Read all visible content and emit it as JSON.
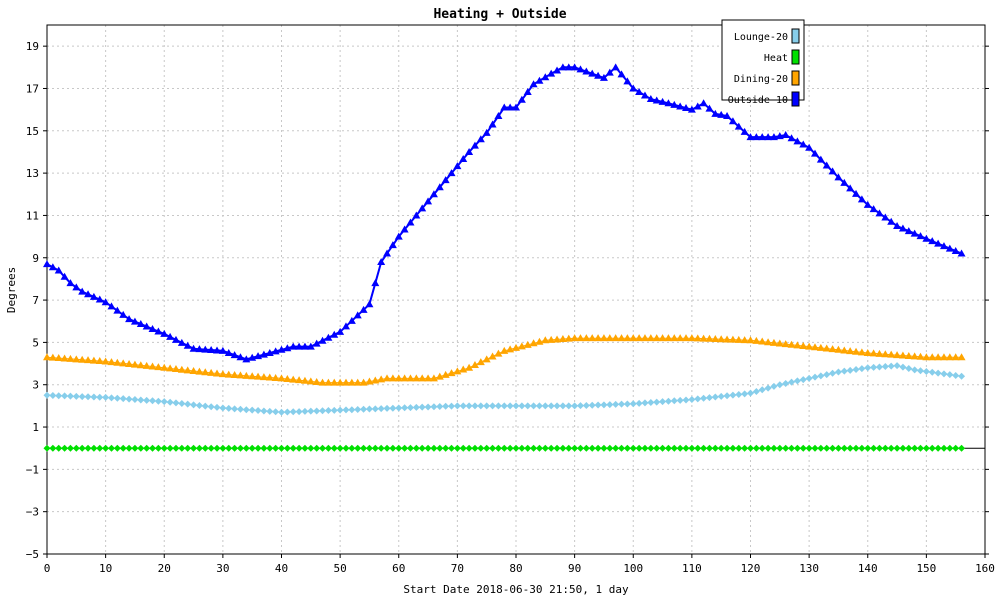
{
  "colors": {
    "background": "#ffffff",
    "frame": "#000000",
    "grid": "#c8c8c8",
    "lounge": "#87ceeb",
    "heat": "#00e000",
    "dining": "#ffa500",
    "outside": "#0000ff"
  },
  "chart_data": {
    "type": "line",
    "title": "Heating + Outside",
    "xlabel": "Start Date 2018-06-30 21:50, 1 day",
    "ylabel": "Degrees",
    "xlim": [
      0,
      160
    ],
    "ylim": [
      -5,
      20
    ],
    "xticks": [
      0,
      10,
      20,
      30,
      40,
      50,
      60,
      70,
      80,
      90,
      100,
      110,
      120,
      130,
      140,
      150,
      160
    ],
    "yticks": [
      -5,
      -3,
      -1,
      1,
      3,
      5,
      7,
      9,
      11,
      13,
      15,
      17,
      19
    ],
    "grid": true,
    "legend_position": "top-right",
    "series": [
      {
        "name": "Lounge-20",
        "color": "#87ceeb",
        "marker": "diamond",
        "keyframes": [
          [
            0,
            2.5
          ],
          [
            10,
            2.4
          ],
          [
            20,
            2.2
          ],
          [
            30,
            1.9
          ],
          [
            40,
            1.7
          ],
          [
            50,
            1.8
          ],
          [
            60,
            1.9
          ],
          [
            70,
            2.0
          ],
          [
            80,
            2.0
          ],
          [
            90,
            2.0
          ],
          [
            100,
            2.1
          ],
          [
            110,
            2.3
          ],
          [
            120,
            2.6
          ],
          [
            125,
            3.0
          ],
          [
            130,
            3.3
          ],
          [
            135,
            3.6
          ],
          [
            140,
            3.8
          ],
          [
            145,
            3.9
          ],
          [
            148,
            3.7
          ],
          [
            156,
            3.4
          ]
        ]
      },
      {
        "name": "Heat",
        "color": "#00e000",
        "marker": "diamond",
        "keyframes": [
          [
            0,
            0
          ],
          [
            156,
            0
          ]
        ]
      },
      {
        "name": "Dining-20",
        "color": "#ffa500",
        "marker": "triangle",
        "keyframes": [
          [
            0,
            4.3
          ],
          [
            10,
            4.1
          ],
          [
            20,
            3.8
          ],
          [
            30,
            3.5
          ],
          [
            40,
            3.3
          ],
          [
            47,
            3.1
          ],
          [
            54,
            3.1
          ],
          [
            58,
            3.3
          ],
          [
            66,
            3.3
          ],
          [
            72,
            3.8
          ],
          [
            78,
            4.6
          ],
          [
            85,
            5.1
          ],
          [
            90,
            5.2
          ],
          [
            100,
            5.2
          ],
          [
            110,
            5.2
          ],
          [
            120,
            5.1
          ],
          [
            130,
            4.8
          ],
          [
            140,
            4.5
          ],
          [
            150,
            4.3
          ],
          [
            156,
            4.3
          ]
        ]
      },
      {
        "name": "Outside-10",
        "color": "#0000ff",
        "marker": "triangle",
        "keyframes": [
          [
            0,
            8.7
          ],
          [
            2,
            8.4
          ],
          [
            4,
            7.8
          ],
          [
            6,
            7.4
          ],
          [
            10,
            6.9
          ],
          [
            14,
            6.1
          ],
          [
            20,
            5.4
          ],
          [
            25,
            4.7
          ],
          [
            30,
            4.6
          ],
          [
            34,
            4.2
          ],
          [
            38,
            4.5
          ],
          [
            42,
            4.8
          ],
          [
            45,
            4.8
          ],
          [
            50,
            5.5
          ],
          [
            55,
            6.8
          ],
          [
            57,
            8.8
          ],
          [
            60,
            10
          ],
          [
            63,
            11
          ],
          [
            66,
            12
          ],
          [
            69,
            13
          ],
          [
            72,
            14
          ],
          [
            75,
            14.9
          ],
          [
            78,
            16.1
          ],
          [
            80,
            16.1
          ],
          [
            83,
            17.2
          ],
          [
            86,
            17.7
          ],
          [
            88,
            18
          ],
          [
            90,
            18
          ],
          [
            92,
            17.8
          ],
          [
            95,
            17.5
          ],
          [
            97,
            18
          ],
          [
            100,
            17
          ],
          [
            103,
            16.5
          ],
          [
            106,
            16.3
          ],
          [
            110,
            16
          ],
          [
            112,
            16.3
          ],
          [
            114,
            15.8
          ],
          [
            116,
            15.7
          ],
          [
            120,
            14.7
          ],
          [
            124,
            14.7
          ],
          [
            126,
            14.8
          ],
          [
            130,
            14.2
          ],
          [
            135,
            12.8
          ],
          [
            140,
            11.5
          ],
          [
            145,
            10.5
          ],
          [
            150,
            9.9
          ],
          [
            156,
            9.2
          ]
        ]
      }
    ]
  }
}
